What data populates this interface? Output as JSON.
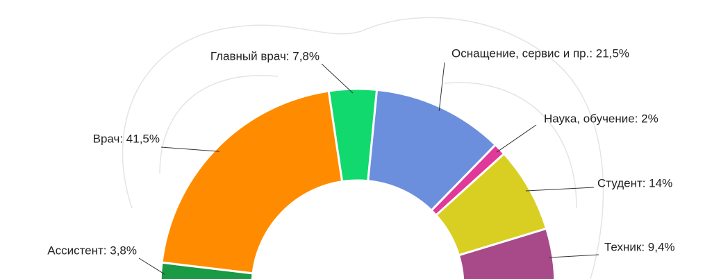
{
  "chart_data": {
    "type": "half-donut",
    "labels": [
      "Ассистент: 3,8%",
      "Врач: 41,5%",
      "Главный врач: 7,8%",
      "Оснащение, сервис и пр.: 21,5%",
      "Наука, обучение: 2%",
      "Студент: 14%",
      "Техник: 9,4%"
    ],
    "values": [
      3.8,
      41.5,
      7.8,
      21.5,
      2,
      14,
      9.4
    ],
    "colors": [
      "#1a9a44",
      "#ff8c00",
      "#12d96e",
      "#6b8fdc",
      "#e0399a",
      "#d9cf22",
      "#a84a8a"
    ]
  }
}
